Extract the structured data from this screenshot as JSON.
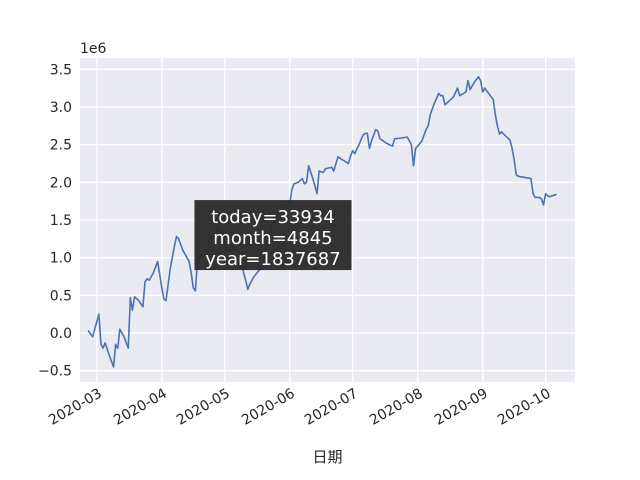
{
  "chart_data": {
    "type": "line",
    "xlabel": "日期",
    "ylabel": "",
    "y_scale_label": "1e6",
    "ylim": [
      -650000,
      3650000
    ],
    "xlim": [
      "2020-02-22",
      "2020-10-15"
    ],
    "grid": true,
    "legend": "none",
    "x_ticks": [
      "2020-03-01",
      "2020-04-01",
      "2020-05-01",
      "2020-06-01",
      "2020-07-01",
      "2020-08-01",
      "2020-09-01",
      "2020-10-01"
    ],
    "x_tick_labels": [
      "2020-03",
      "2020-04",
      "2020-05",
      "2020-06",
      "2020-07",
      "2020-08",
      "2020-09",
      "2020-10"
    ],
    "y_ticks": [
      -500000,
      0,
      500000,
      1000000,
      1500000,
      2000000,
      2500000,
      3000000,
      3500000
    ],
    "y_tick_labels": [
      "−0.5",
      "0.0",
      "0.5",
      "1.0",
      "1.5",
      "2.0",
      "2.5",
      "3.0",
      "3.5"
    ],
    "series": [
      {
        "color": "#4c72b0",
        "points": [
          [
            "2020-02-26",
            30000
          ],
          [
            "2020-02-28",
            -50000
          ],
          [
            "2020-03-01",
            150000
          ],
          [
            "2020-03-02",
            250000
          ],
          [
            "2020-03-03",
            -150000
          ],
          [
            "2020-03-04",
            -200000
          ],
          [
            "2020-03-05",
            -130000
          ],
          [
            "2020-03-07",
            -300000
          ],
          [
            "2020-03-09",
            -450000
          ],
          [
            "2020-03-10",
            -150000
          ],
          [
            "2020-03-11",
            -200000
          ],
          [
            "2020-03-12",
            50000
          ],
          [
            "2020-03-14",
            -50000
          ],
          [
            "2020-03-16",
            -200000
          ],
          [
            "2020-03-17",
            470000
          ],
          [
            "2020-03-18",
            300000
          ],
          [
            "2020-03-19",
            480000
          ],
          [
            "2020-03-21",
            430000
          ],
          [
            "2020-03-23",
            350000
          ],
          [
            "2020-03-24",
            680000
          ],
          [
            "2020-03-25",
            720000
          ],
          [
            "2020-03-26",
            700000
          ],
          [
            "2020-03-28",
            800000
          ],
          [
            "2020-03-30",
            950000
          ],
          [
            "2020-04-01",
            600000
          ],
          [
            "2020-04-02",
            450000
          ],
          [
            "2020-04-03",
            430000
          ],
          [
            "2020-04-05",
            850000
          ],
          [
            "2020-04-07",
            1150000
          ],
          [
            "2020-04-08",
            1280000
          ],
          [
            "2020-04-09",
            1250000
          ],
          [
            "2020-04-11",
            1100000
          ],
          [
            "2020-04-13",
            1000000
          ],
          [
            "2020-04-14",
            950000
          ],
          [
            "2020-04-15",
            800000
          ],
          [
            "2020-04-16",
            600000
          ],
          [
            "2020-04-17",
            560000
          ],
          [
            "2020-04-18",
            950000
          ],
          [
            "2020-04-20",
            1050000
          ],
          [
            "2020-04-22",
            1100000
          ],
          [
            "2020-04-23",
            1050000
          ],
          [
            "2020-04-24",
            1300000
          ],
          [
            "2020-04-25",
            1250000
          ],
          [
            "2020-04-27",
            1350000
          ],
          [
            "2020-04-28",
            1420000
          ],
          [
            "2020-04-30",
            1300000
          ],
          [
            "2020-05-01",
            1250000
          ],
          [
            "2020-05-02",
            1080000
          ],
          [
            "2020-05-04",
            1100000
          ],
          [
            "2020-05-05",
            1100000
          ],
          [
            "2020-05-07",
            1100000
          ],
          [
            "2020-05-08",
            1050000
          ],
          [
            "2020-05-10",
            800000
          ],
          [
            "2020-05-11",
            700000
          ],
          [
            "2020-05-12",
            580000
          ],
          [
            "2020-05-13",
            650000
          ],
          [
            "2020-05-15",
            750000
          ],
          [
            "2020-05-17",
            820000
          ],
          [
            "2020-05-19",
            880000
          ],
          [
            "2020-05-22",
            1300000
          ],
          [
            "2020-05-24",
            1450000
          ],
          [
            "2020-05-26",
            1550000
          ],
          [
            "2020-05-28",
            1620000
          ],
          [
            "2020-05-30",
            1700000
          ],
          [
            "2020-06-01",
            1720000
          ],
          [
            "2020-06-02",
            1900000
          ],
          [
            "2020-06-03",
            1980000
          ],
          [
            "2020-06-05",
            2000000
          ],
          [
            "2020-06-07",
            2050000
          ],
          [
            "2020-06-08",
            1980000
          ],
          [
            "2020-06-09",
            2000000
          ],
          [
            "2020-06-10",
            2220000
          ],
          [
            "2020-06-12",
            2050000
          ],
          [
            "2020-06-14",
            1850000
          ],
          [
            "2020-06-15",
            2150000
          ],
          [
            "2020-06-17",
            2130000
          ],
          [
            "2020-06-18",
            2180000
          ],
          [
            "2020-06-21",
            2200000
          ],
          [
            "2020-06-22",
            2150000
          ],
          [
            "2020-06-24",
            2340000
          ],
          [
            "2020-06-26",
            2300000
          ],
          [
            "2020-06-29",
            2250000
          ],
          [
            "2020-06-30",
            2350000
          ],
          [
            "2020-07-01",
            2420000
          ],
          [
            "2020-07-02",
            2380000
          ],
          [
            "2020-07-04",
            2500000
          ],
          [
            "2020-07-06",
            2630000
          ],
          [
            "2020-07-07",
            2650000
          ],
          [
            "2020-07-08",
            2650000
          ],
          [
            "2020-07-09",
            2450000
          ],
          [
            "2020-07-10",
            2550000
          ],
          [
            "2020-07-12",
            2700000
          ],
          [
            "2020-07-13",
            2680000
          ],
          [
            "2020-07-14",
            2580000
          ],
          [
            "2020-07-17",
            2520000
          ],
          [
            "2020-07-20",
            2480000
          ],
          [
            "2020-07-21",
            2580000
          ],
          [
            "2020-07-22",
            2580000
          ],
          [
            "2020-07-27",
            2600000
          ],
          [
            "2020-07-29",
            2500000
          ],
          [
            "2020-07-30",
            2220000
          ],
          [
            "2020-07-31",
            2450000
          ],
          [
            "2020-08-01",
            2480000
          ],
          [
            "2020-08-03",
            2550000
          ],
          [
            "2020-08-05",
            2700000
          ],
          [
            "2020-08-06",
            2750000
          ],
          [
            "2020-08-07",
            2900000
          ],
          [
            "2020-08-09",
            3050000
          ],
          [
            "2020-08-11",
            3180000
          ],
          [
            "2020-08-12",
            3150000
          ],
          [
            "2020-08-13",
            3150000
          ],
          [
            "2020-08-14",
            3030000
          ],
          [
            "2020-08-16",
            3080000
          ],
          [
            "2020-08-18",
            3130000
          ],
          [
            "2020-08-20",
            3250000
          ],
          [
            "2020-08-21",
            3150000
          ],
          [
            "2020-08-24",
            3200000
          ],
          [
            "2020-08-25",
            3350000
          ],
          [
            "2020-08-26",
            3230000
          ],
          [
            "2020-08-28",
            3330000
          ],
          [
            "2020-08-30",
            3400000
          ],
          [
            "2020-08-31",
            3350000
          ],
          [
            "2020-09-01",
            3200000
          ],
          [
            "2020-09-02",
            3250000
          ],
          [
            "2020-09-03",
            3210000
          ],
          [
            "2020-09-06",
            3100000
          ],
          [
            "2020-09-07",
            2900000
          ],
          [
            "2020-09-08",
            2750000
          ],
          [
            "2020-09-09",
            2640000
          ],
          [
            "2020-09-10",
            2670000
          ],
          [
            "2020-09-11",
            2640000
          ],
          [
            "2020-09-14",
            2560000
          ],
          [
            "2020-09-15",
            2450000
          ],
          [
            "2020-09-16",
            2300000
          ],
          [
            "2020-09-17",
            2100000
          ],
          [
            "2020-09-18",
            2080000
          ],
          [
            "2020-09-24",
            2050000
          ],
          [
            "2020-09-25",
            1850000
          ],
          [
            "2020-09-26",
            1800000
          ],
          [
            "2020-09-28",
            1800000
          ],
          [
            "2020-09-29",
            1780000
          ],
          [
            "2020-09-30",
            1700000
          ],
          [
            "2020-10-01",
            1850000
          ],
          [
            "2020-10-02",
            1820000
          ],
          [
            "2020-10-03",
            1810000
          ],
          [
            "2020-10-06",
            1837687
          ]
        ]
      }
    ],
    "annotation": {
      "lines": [
        "today=33934",
        "month=4845",
        "year=1837687"
      ],
      "anchor": [
        "2020-05-24",
        1300000
      ]
    }
  }
}
